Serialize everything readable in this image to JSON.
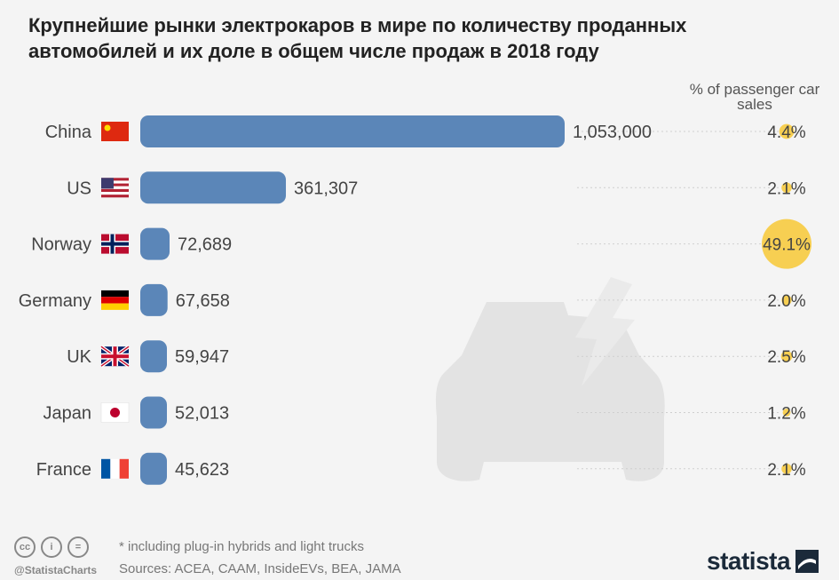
{
  "title": "Крупнейшие рынки электрокаров в мире по количеству проданных автомобилей и их доле в общем числе продаж в 2018 году",
  "share_header": "% of passenger car sales",
  "footnote": "* including plug-in hybrids and light trucks",
  "sources": "Sources: ACEA, CAAM, InsideEVs, BEA, JAMA",
  "handle": "@StatistaCharts",
  "brand": "statista",
  "cc_icons": [
    "cc-icon",
    "person-icon",
    "equals-icon"
  ],
  "colors": {
    "bar": "#5b86b8",
    "bubble": "#f7cf52",
    "background": "#f4f4f4",
    "text": "#444444"
  },
  "chart_data": {
    "type": "bar",
    "orientation": "horizontal",
    "categories": [
      "China",
      "US",
      "Norway",
      "Germany",
      "UK",
      "Japan",
      "France"
    ],
    "value_labels": [
      "1,053,000",
      "361,307",
      "72,689",
      "67,658",
      "59,947",
      "52,013",
      "45,623"
    ],
    "values": [
      1053000,
      361307,
      72689,
      67658,
      59947,
      52013,
      45623
    ],
    "share_labels": [
      "4.4%",
      "2.1%",
      "49.1%",
      "2.0%",
      "2.5%",
      "1.2%",
      "2.1%"
    ],
    "share_values": [
      4.4,
      2.1,
      49.1,
      2.0,
      2.5,
      1.2,
      2.1
    ],
    "flags": [
      "china-flag-icon",
      "us-flag-icon",
      "norway-flag-icon",
      "germany-flag-icon",
      "uk-flag-icon",
      "japan-flag-icon",
      "france-flag-icon"
    ]
  }
}
